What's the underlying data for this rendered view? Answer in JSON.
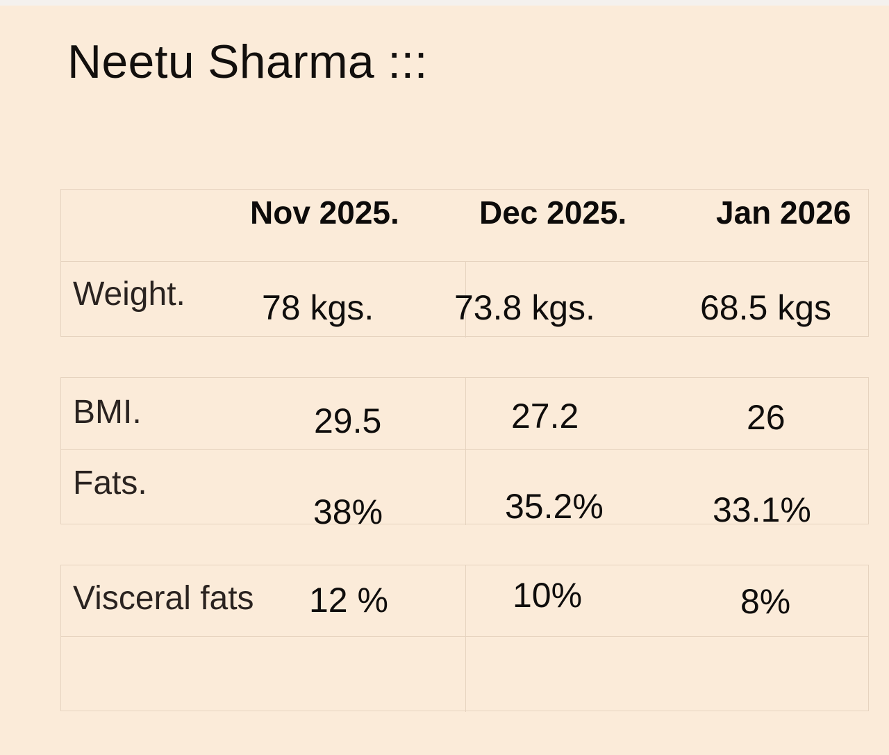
{
  "title": "Neetu Sharma :::",
  "months": [
    "Nov 2025.",
    "Dec 2025.",
    "Jan 2026"
  ],
  "rows": {
    "weight": {
      "label": "Weight.",
      "values": [
        "78 kgs.",
        "73.8 kgs.",
        "68.5 kgs"
      ]
    },
    "bmi": {
      "label": "BMI.",
      "values": [
        "29.5",
        "27.2",
        "26"
      ]
    },
    "fats": {
      "label": "Fats.",
      "values": [
        "38%",
        "35.2%",
        "33.1%"
      ]
    },
    "visceral_fats": {
      "label": "Visceral fats",
      "values": [
        "12 %",
        "10%",
        "8%"
      ]
    }
  }
}
